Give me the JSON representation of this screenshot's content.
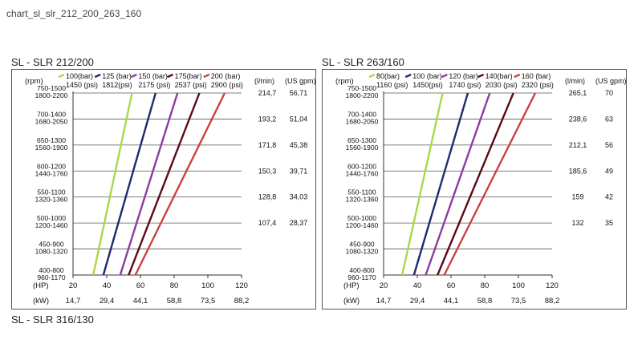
{
  "page": {
    "heading": "chart_sl_slr_212_200_263_160",
    "footer_title": "SL - SLR 316/130"
  },
  "chart_data": [
    {
      "type": "line",
      "title": "SL - SLR 212/200",
      "rpm_header": "(rpm)",
      "flow_header": "(l/min)",
      "gpm_header": "(US gpm)",
      "hp_label": "(HP)",
      "kw_label": "(kW)",
      "x_range": [
        20,
        120
      ],
      "y_range": [
        0,
        7
      ],
      "x_ticks": [
        20,
        40,
        60,
        80,
        100,
        120
      ],
      "hp_tick_labels": [
        "20",
        "40",
        "60",
        "80",
        "100",
        "120"
      ],
      "kw_tick_labels": [
        "14,7",
        "29,4",
        "44,1",
        "58,8",
        "73,5",
        "88,2"
      ],
      "rows": [
        {
          "rpm1": "750-1500",
          "rpm2": "1800-2200",
          "lmin": "214,7",
          "gpm": "56,71"
        },
        {
          "rpm1": "700-1400",
          "rpm2": "1680-2050",
          "lmin": "193,2",
          "gpm": "51,04"
        },
        {
          "rpm1": "650-1300",
          "rpm2": "1560-1900",
          "lmin": "171,8",
          "gpm": "45,38"
        },
        {
          "rpm1": "600-1200",
          "rpm2": "1440-1760",
          "lmin": "150,3",
          "gpm": "39,71"
        },
        {
          "rpm1": "550-1100",
          "rpm2": "1320-1360",
          "lmin": "128,8",
          "gpm": "34,03"
        },
        {
          "rpm1": "500-1000",
          "rpm2": "1200-1460",
          "lmin": "107,4",
          "gpm": "28,37"
        },
        {
          "rpm1": "450-900",
          "rpm2": "1080-1320",
          "lmin": "",
          "gpm": ""
        },
        {
          "rpm1": "400-800",
          "rpm2": "960-1170",
          "lmin": "",
          "gpm": ""
        }
      ],
      "series": [
        {
          "label1": "100(bar)",
          "label2": "1450 (psi)",
          "color": "#a8d84a",
          "x_start": 32,
          "x_end": 55
        },
        {
          "label1": "125 (bar)",
          "label2": "1812(psi)",
          "color": "#1e2a6e",
          "x_start": 38,
          "x_end": 69
        },
        {
          "label1": "150 (bar)",
          "label2": "2175 (psi)",
          "color": "#8a3da0",
          "x_start": 48,
          "x_end": 82
        },
        {
          "label1": "175(bar)",
          "label2": "2537 (psi)",
          "color": "#5a0a16",
          "x_start": 53,
          "x_end": 95
        },
        {
          "label1": "200 (bar)",
          "label2": "2900 (psi)",
          "color": "#c8443e",
          "x_start": 57,
          "x_end": 110
        }
      ]
    },
    {
      "type": "line",
      "title": "SL - SLR 263/160",
      "rpm_header": "(rpm)",
      "flow_header": "(l/min)",
      "gpm_header": "(US gpm)",
      "hp_label": "(HP)",
      "kw_label": "(kW)",
      "x_range": [
        20,
        120
      ],
      "y_range": [
        0,
        7
      ],
      "x_ticks": [
        20,
        40,
        60,
        80,
        100,
        120
      ],
      "hp_tick_labels": [
        "20",
        "40",
        "60",
        "80",
        "100",
        "120"
      ],
      "kw_tick_labels": [
        "14,7",
        "29,4",
        "44,1",
        "58,8",
        "73,5",
        "88,2"
      ],
      "rows": [
        {
          "rpm1": "750-1500",
          "rpm2": "1800-2200",
          "lmin": "265,1",
          "gpm": "70"
        },
        {
          "rpm1": "700-1400",
          "rpm2": "1680-2050",
          "lmin": "238,6",
          "gpm": "63"
        },
        {
          "rpm1": "650-1300",
          "rpm2": "1560-1900",
          "lmin": "212,1",
          "gpm": "56"
        },
        {
          "rpm1": "600-1200",
          "rpm2": "1440-1760",
          "lmin": "185,6",
          "gpm": "49"
        },
        {
          "rpm1": "550-1100",
          "rpm2": "1320-1360",
          "lmin": "159",
          "gpm": "42"
        },
        {
          "rpm1": "500-1000",
          "rpm2": "1200-1460",
          "lmin": "132",
          "gpm": "35"
        },
        {
          "rpm1": "450-900",
          "rpm2": "1080-1320",
          "lmin": "",
          "gpm": ""
        },
        {
          "rpm1": "400-800",
          "rpm2": "960-1170",
          "lmin": "",
          "gpm": ""
        }
      ],
      "series": [
        {
          "label1": "80(bar)",
          "label2": "1160 (psi)",
          "color": "#a8d84a",
          "x_start": 31,
          "x_end": 55
        },
        {
          "label1": "100 (bar)",
          "label2": "1450(psi)",
          "color": "#1e2a6e",
          "x_start": 38,
          "x_end": 70
        },
        {
          "label1": "120 (bar)",
          "label2": "1740 (psi)",
          "color": "#8a3da0",
          "x_start": 45,
          "x_end": 83
        },
        {
          "label1": "140(bar)",
          "label2": "2030 (psi)",
          "color": "#5a0a16",
          "x_start": 52,
          "x_end": 97
        },
        {
          "label1": "160 (bar)",
          "label2": "2320 (psi)",
          "color": "#c8443e",
          "x_start": 56,
          "x_end": 110
        }
      ]
    }
  ]
}
